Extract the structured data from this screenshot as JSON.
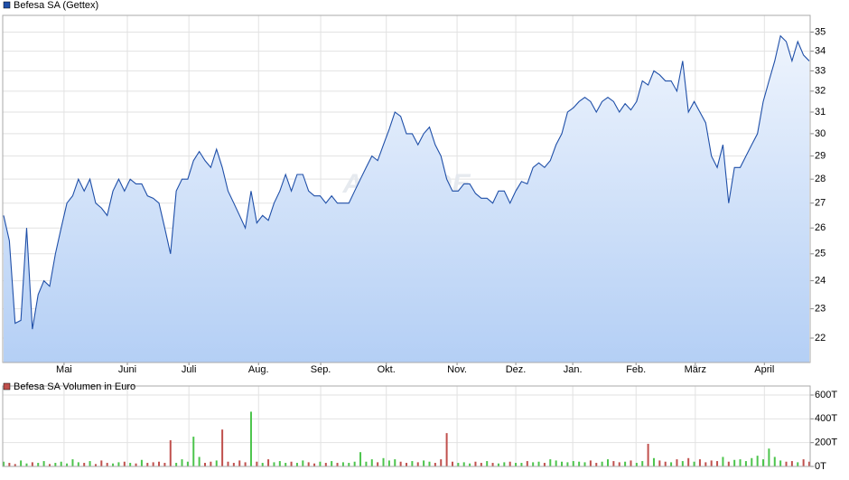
{
  "chart_data": [
    {
      "type": "area",
      "legend": "Befesa SA (Gettex)",
      "color": "#1f4fa8",
      "watermark": "ARIVA.DE",
      "log_scale": true,
      "grid": true,
      "values": [
        26.5,
        25.5,
        22.5,
        22.6,
        26,
        22.3,
        23.5,
        24,
        23.8,
        25,
        26,
        27,
        27.3,
        28,
        27.5,
        28,
        27,
        26.8,
        26.5,
        27.5,
        28,
        27.5,
        28,
        27.8,
        27.8,
        27.3,
        27.2,
        27,
        26,
        25,
        27.5,
        28,
        28,
        28.8,
        29.2,
        28.8,
        28.5,
        29.3,
        28.5,
        27.5,
        27,
        26.5,
        26,
        27.5,
        26.2,
        26.5,
        26.3,
        27,
        27.5,
        28.2,
        27.5,
        28.2,
        28.2,
        27.5,
        27.3,
        27.3,
        27,
        27.3,
        27,
        27,
        27,
        27.5,
        28,
        28.5,
        29,
        28.8,
        29.5,
        30.2,
        31,
        30.8,
        30,
        30,
        29.5,
        30,
        30.3,
        29.5,
        29,
        28,
        27.5,
        27.5,
        27.8,
        27.8,
        27.4,
        27.2,
        27.2,
        27,
        27.5,
        27.5,
        27,
        27.5,
        27.9,
        27.8,
        28.5,
        28.7,
        28.5,
        28.8,
        29.5,
        30,
        31,
        31.2,
        31.5,
        31.7,
        31.5,
        31,
        31.5,
        31.7,
        31.5,
        31,
        31.4,
        31.1,
        31.5,
        32.5,
        32.3,
        33,
        32.8,
        32.5,
        32.5,
        32,
        33.5,
        31,
        31.5,
        31,
        30.5,
        29,
        28.5,
        29.5,
        27,
        28.5,
        28.5,
        29,
        29.5,
        30,
        31.5,
        32.5,
        33.5,
        34.8,
        34.5,
        33.5,
        34.5,
        33.8,
        33.5
      ],
      "xlim": [
        0,
        140
      ],
      "xticks": [
        {
          "value": 10.5,
          "label": "Mai"
        },
        {
          "value": 21.5,
          "label": "Juni"
        },
        {
          "value": 32.2,
          "label": "Juli"
        },
        {
          "value": 44.3,
          "label": "Aug."
        },
        {
          "value": 55.1,
          "label": "Sep."
        },
        {
          "value": 66.5,
          "label": "Okt."
        },
        {
          "value": 78.8,
          "label": "Nov."
        },
        {
          "value": 89,
          "label": "Dez."
        },
        {
          "value": 98.9,
          "label": "Jan."
        },
        {
          "value": 109.9,
          "label": "Feb."
        },
        {
          "value": 120.2,
          "label": "März"
        },
        {
          "value": 132.2,
          "label": "April"
        }
      ],
      "ylim": [
        21.2,
        35.9
      ],
      "yticks": [
        22,
        23,
        24,
        25,
        26,
        27,
        28,
        29,
        30,
        31,
        32,
        33,
        34,
        35
      ]
    },
    {
      "type": "bar",
      "legend": "Befesa SA Volumen in Euro",
      "color": "#c0504d",
      "up_color": "#4cc44c",
      "down_color": "#c0504d",
      "grid": true,
      "values": [
        40,
        30,
        20,
        50,
        25,
        35,
        30,
        45,
        20,
        30,
        40,
        25,
        60,
        35,
        30,
        45,
        20,
        50,
        30,
        25,
        35,
        40,
        30,
        25,
        55,
        30,
        35,
        40,
        30,
        220,
        30,
        60,
        40,
        250,
        80,
        30,
        40,
        50,
        310,
        40,
        30,
        50,
        35,
        460,
        40,
        30,
        60,
        35,
        45,
        30,
        40,
        30,
        50,
        35,
        25,
        40,
        30,
        45,
        30,
        35,
        30,
        40,
        120,
        40,
        60,
        35,
        70,
        50,
        60,
        40,
        30,
        45,
        35,
        50,
        40,
        30,
        60,
        280,
        40,
        30,
        35,
        25,
        40,
        30,
        45,
        30,
        25,
        35,
        40,
        30,
        30,
        45,
        35,
        40,
        30,
        60,
        50,
        40,
        35,
        45,
        40,
        35,
        50,
        30,
        40,
        60,
        45,
        35,
        40,
        50,
        30,
        45,
        190,
        70,
        50,
        40,
        35,
        60,
        45,
        70,
        40,
        60,
        35,
        50,
        45,
        80,
        40,
        55,
        60,
        45,
        70,
        90,
        60,
        150,
        80,
        50,
        40,
        45,
        35,
        60,
        40
      ],
      "ylim": [
        0,
        676
      ],
      "yticks": [
        {
          "value": 0,
          "label": "0T"
        },
        {
          "value": 200,
          "label": "200T"
        },
        {
          "value": 400,
          "label": "400T"
        },
        {
          "value": 600,
          "label": "600T"
        }
      ]
    }
  ]
}
